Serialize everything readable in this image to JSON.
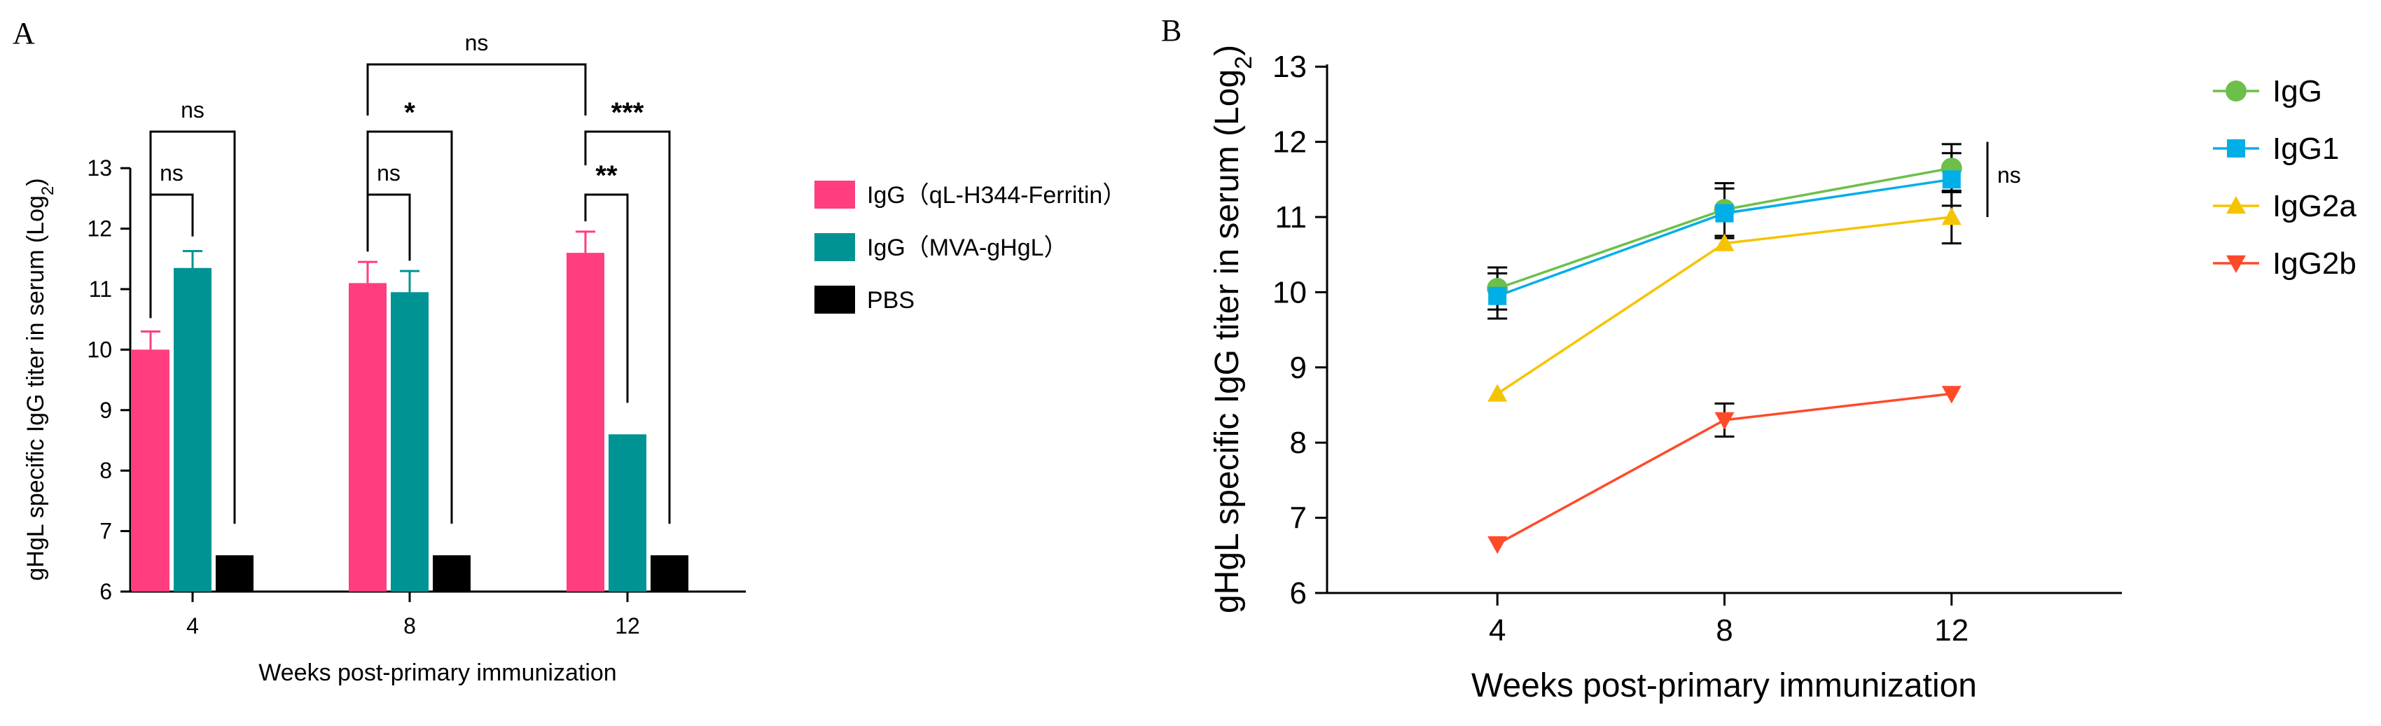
{
  "chart_data": [
    {
      "panel": "A",
      "type": "bar",
      "xlabel": "Weeks post-primary immunization",
      "ylabel": "gHgL specific IgG titer in serum (Log",
      "ylabel_sub": "2",
      "ylabel_end": ")",
      "ylim": [
        6,
        13
      ],
      "yticks": [
        6,
        7,
        8,
        9,
        10,
        11,
        12,
        13
      ],
      "categories": [
        "4",
        "8",
        "12"
      ],
      "series": [
        {
          "name": "IgG（qL-H344-Ferritin）",
          "color": "#ff3d7f",
          "values": [
            10.0,
            11.1,
            11.6
          ],
          "errors": [
            0.3,
            0.35,
            0.35
          ]
        },
        {
          "name": "IgG（MVA-gHgL）",
          "color": "#009393",
          "values": [
            11.35,
            10.95,
            8.6
          ],
          "errors": [
            0.28,
            0.35,
            0
          ]
        },
        {
          "name": "PBS",
          "color": "#000000",
          "values": [
            6.6,
            6.6,
            6.6
          ],
          "errors": [
            0,
            0,
            0
          ]
        }
      ],
      "significance": [
        {
          "group": 0,
          "from": 0,
          "to": 1,
          "level": 1,
          "label": "ns"
        },
        {
          "group": 0,
          "from": 0,
          "to": 2,
          "level": 2,
          "label": "ns"
        },
        {
          "group": 1,
          "from": 0,
          "to": 1,
          "level": 1,
          "label": "ns"
        },
        {
          "group": 1,
          "from": 0,
          "to": 2,
          "level": 2,
          "label": "*"
        },
        {
          "group": 2,
          "from": 0,
          "to": 1,
          "level": 1,
          "label": "**"
        },
        {
          "group": 2,
          "from": 0,
          "to": 2,
          "level": 2,
          "label": "***"
        },
        {
          "group": 1,
          "from": 0,
          "to": 2,
          "level": 3,
          "cross": 2,
          "label": "ns"
        }
      ]
    },
    {
      "panel": "B",
      "type": "line",
      "xlabel": "Weeks post-primary immunization",
      "ylabel": "gHgL specific IgG titer in serum (Log",
      "ylabel_sub": "2",
      "ylabel_end": ")",
      "ylim": [
        6,
        13
      ],
      "yticks": [
        6,
        7,
        8,
        9,
        10,
        11,
        12,
        13
      ],
      "x": [
        4,
        8,
        12
      ],
      "xlim": [
        1,
        15
      ],
      "series": [
        {
          "name": "IgG",
          "color": "#6cc04a",
          "marker": "circle",
          "values": [
            10.05,
            11.1,
            11.65
          ],
          "errors": [
            0.28,
            0.35,
            0.32
          ]
        },
        {
          "name": "IgG1",
          "color": "#00aee8",
          "marker": "square",
          "values": [
            9.95,
            11.05,
            11.5
          ],
          "errors": [
            0.3,
            0.33,
            0.35
          ]
        },
        {
          "name": "IgG2a",
          "color": "#f5c400",
          "marker": "triangle-up",
          "values": [
            8.65,
            10.65,
            11.0
          ],
          "errors": [
            0,
            0,
            0.35
          ]
        },
        {
          "name": "IgG2b",
          "color": "#ff4a2a",
          "marker": "triangle-down",
          "values": [
            6.65,
            8.3,
            8.65
          ],
          "errors": [
            0,
            0.22,
            0
          ]
        }
      ],
      "significance": [
        {
          "label": "ns"
        }
      ]
    }
  ]
}
